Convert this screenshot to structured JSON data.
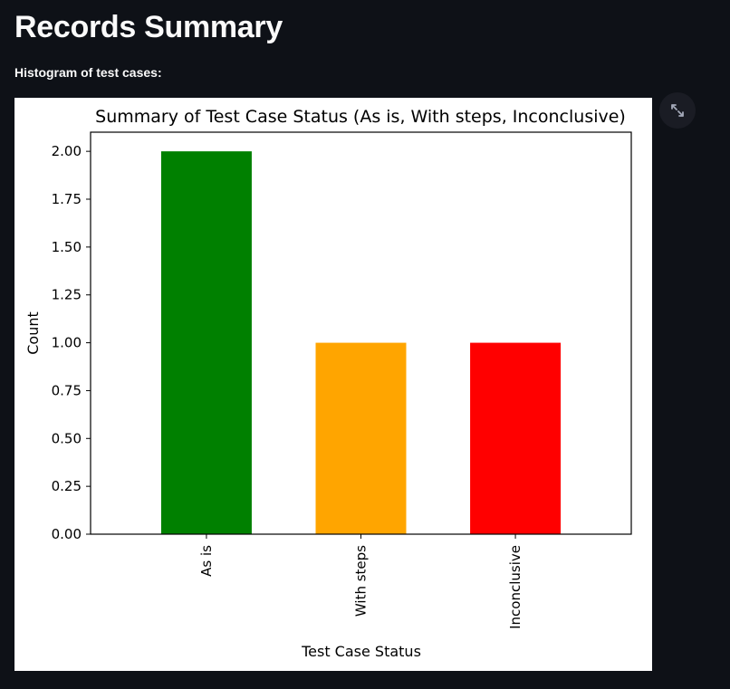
{
  "page": {
    "title": "Records Summary",
    "subheading": "Histogram of test cases:"
  },
  "fullscreen": {
    "icon": "expand-icon"
  },
  "chart_data": {
    "type": "bar",
    "title": "Summary of Test Case Status (As is, With steps, Inconclusive)",
    "xlabel": "Test Case Status",
    "ylabel": "Count",
    "categories": [
      "As is",
      "With steps",
      "Inconclusive"
    ],
    "values": [
      2,
      1,
      1
    ],
    "colors": [
      "#008000",
      "#ffa500",
      "#ff0000"
    ],
    "ylim": [
      0,
      2.1
    ],
    "yticks": [
      "0.00",
      "0.25",
      "0.50",
      "0.75",
      "1.00",
      "1.25",
      "1.50",
      "1.75",
      "2.00"
    ],
    "grid": false,
    "legend": false
  }
}
